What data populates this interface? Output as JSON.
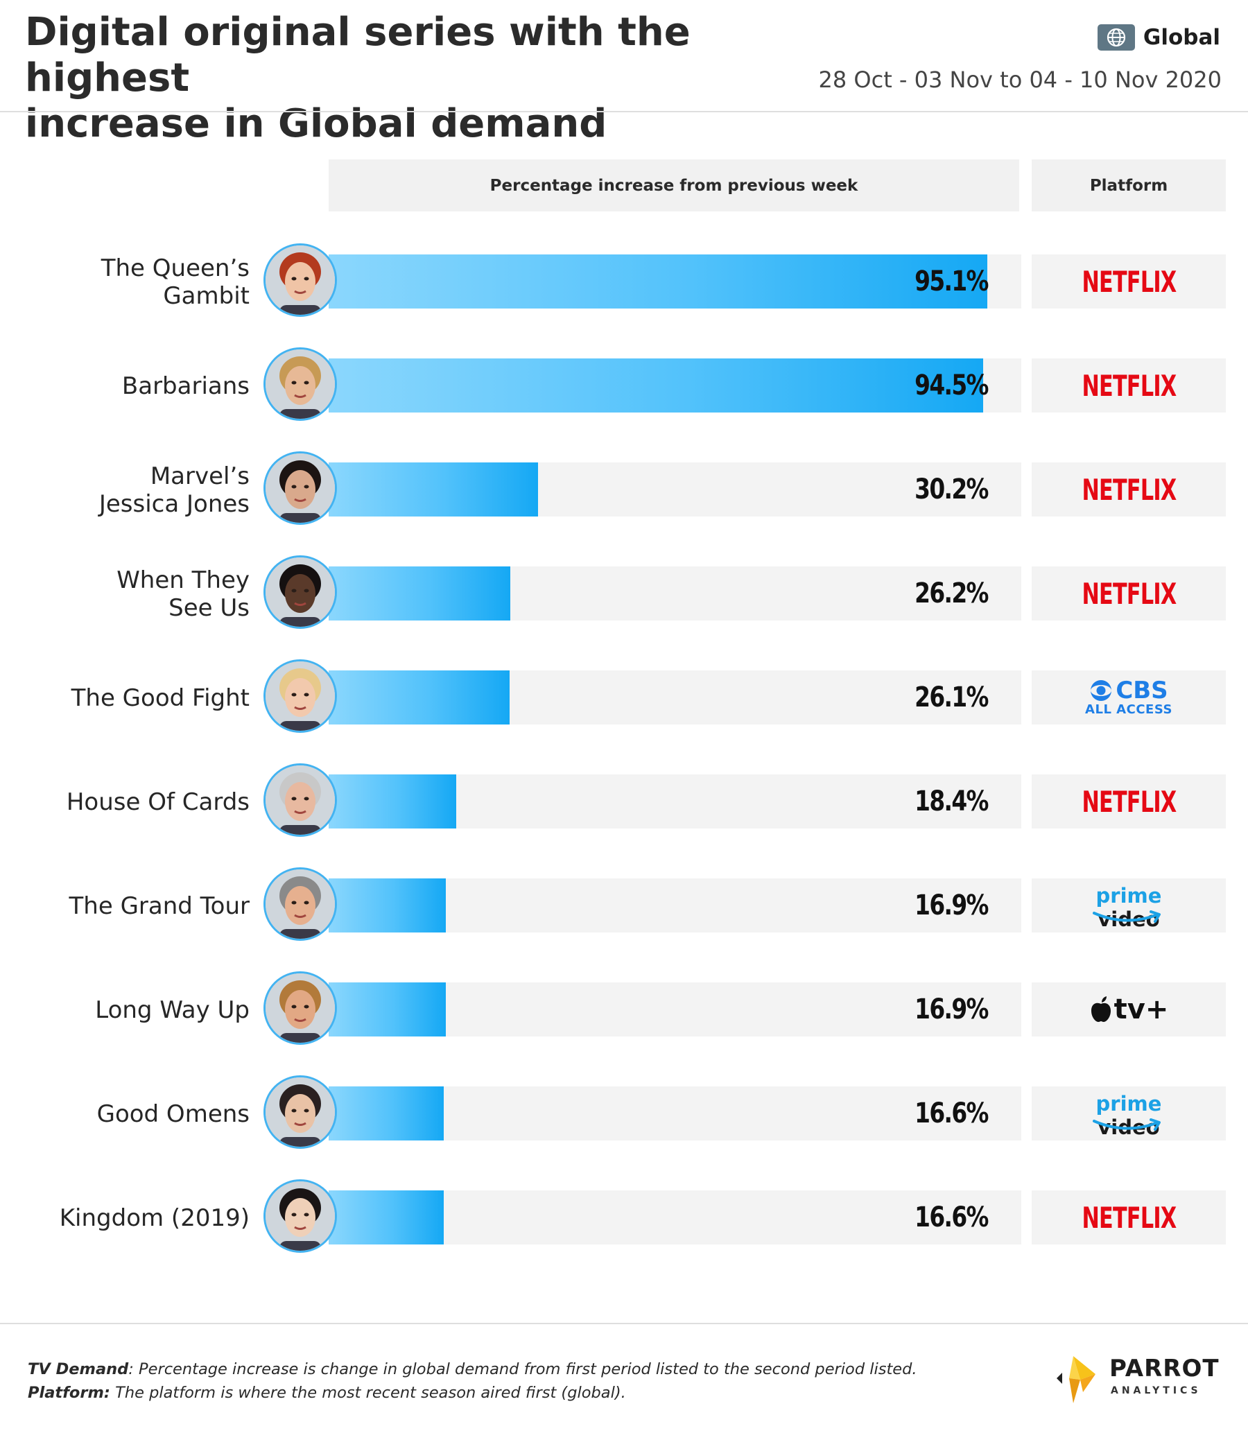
{
  "header": {
    "title_line1": "Digital original series with the highest",
    "title_line2": "increase in Global demand",
    "region": "Global",
    "region_icon": "globe-icon",
    "date_range": "28 Oct - 03 Nov to 04 - 10 Nov 2020"
  },
  "columns": {
    "bar_header": "Percentage increase from previous week",
    "platform_header": "Platform"
  },
  "platforms": {
    "netflix": "NETFLIX",
    "cbs_top": "CBS",
    "cbs_bottom": "ALL ACCESS",
    "prime_a": "prime",
    "prime_b": "video",
    "appletv": "tv+"
  },
  "chart_data": {
    "type": "bar",
    "orientation": "horizontal",
    "xlim": [
      0,
      100
    ],
    "value_suffix": "%",
    "categories": [
      "The Queen’s Gambit",
      "Barbarians",
      "Marvel’s Jessica Jones",
      "When They See Us",
      "The Good Fight",
      "House Of Cards",
      "The Grand Tour",
      "Long Way Up",
      "Good Omens",
      "Kingdom (2019)"
    ],
    "values": [
      95.1,
      94.5,
      30.2,
      26.2,
      26.1,
      18.4,
      16.9,
      16.9,
      16.6,
      16.6
    ],
    "value_labels": [
      "95.1%",
      "94.5%",
      "30.2%",
      "26.2%",
      "26.1%",
      "18.4%",
      "16.9%",
      "16.9%",
      "16.6%",
      "16.6%"
    ],
    "platform": [
      "netflix",
      "netflix",
      "netflix",
      "netflix",
      "cbs",
      "netflix",
      "prime",
      "appletv",
      "prime",
      "netflix"
    ],
    "colors": {
      "bar_start": "#8bd7fd",
      "bar_end": "#15a8f4",
      "netflix": "#e50914",
      "cbs": "#1e7ee6",
      "prime": "#1ca1e5"
    }
  },
  "rows_meta": {
    "label_lines": [
      [
        "The Queen’s",
        "Gambit"
      ],
      [
        "Barbarians"
      ],
      [
        "Marvel’s",
        "Jessica Jones"
      ],
      [
        "When They",
        "See Us"
      ],
      [
        "The Good Fight"
      ],
      [
        "House Of Cards"
      ],
      [
        "The Grand Tour"
      ],
      [
        "Long Way Up"
      ],
      [
        "Good Omens"
      ],
      [
        "Kingdom (2019)"
      ]
    ],
    "avatar_icons": [
      "portrait-icon",
      "portrait-icon",
      "portrait-icon",
      "portrait-icon",
      "portrait-icon",
      "portrait-icon",
      "portrait-icon",
      "portrait-icon",
      "portrait-icon",
      "portrait-icon"
    ]
  },
  "footer": {
    "note1_term": "TV Demand",
    "note1_text": ": Percentage increase is change in global demand from first period listed to the second period listed.",
    "note2_term": "Platform:",
    "note2_text": " The platform is where the most recent season aired first (global).",
    "logo_brand": "PARROT",
    "logo_sub": "ANALYTICS"
  }
}
